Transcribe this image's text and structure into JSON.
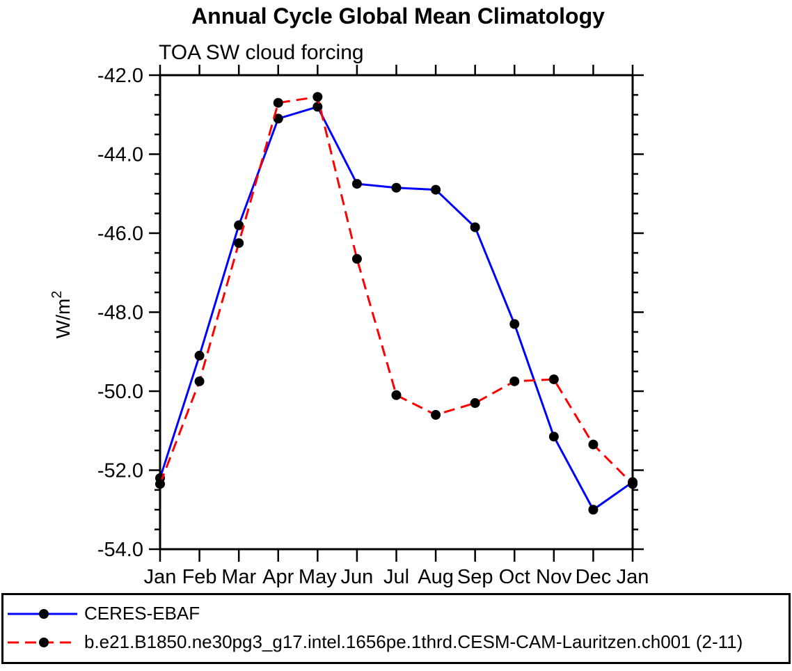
{
  "title": "Annual Cycle Global Mean Climatology",
  "subtitle": "TOA SW cloud forcing",
  "chart_data": {
    "type": "line",
    "categories": [
      "Jan",
      "Feb",
      "Mar",
      "Apr",
      "May",
      "Jun",
      "Jul",
      "Aug",
      "Sep",
      "Oct",
      "Nov",
      "Dec",
      "Jan"
    ],
    "series": [
      {
        "name": "CERES-EBAF",
        "color": "#0000ff",
        "line_style": "solid",
        "marker": "black-filled-circle",
        "marker_color": "#000000",
        "values": [
          -52.2,
          -49.1,
          -45.8,
          -43.1,
          -42.8,
          -44.75,
          -44.85,
          -44.9,
          -45.85,
          -48.3,
          -51.15,
          -53.0,
          -52.3
        ]
      },
      {
        "name": "b.e21.B1850.ne30pg3_g17.intel.1656pe.1thrd.CESM-CAM-Lauritzen.ch001 (2-11)",
        "color": "#ff0000",
        "line_style": "dashed",
        "marker": "black-filled-circle",
        "marker_color": "#000000",
        "values": [
          -52.35,
          -49.75,
          -46.25,
          -42.7,
          -42.55,
          -46.65,
          -50.1,
          -50.6,
          -50.3,
          -49.75,
          -49.7,
          -51.35,
          -52.35
        ]
      }
    ],
    "xlabel": "",
    "ylabel": "W/m²",
    "ylim": [
      -54.0,
      -42.0
    ],
    "yticks": [
      -42.0,
      -44.0,
      -46.0,
      -48.0,
      -50.0,
      -52.0,
      -54.0
    ],
    "y_minor_step": 0.5,
    "grid": "off",
    "legend_position": "bottom-box",
    "axis_color": "#000000",
    "background_color": "#ffffff"
  }
}
